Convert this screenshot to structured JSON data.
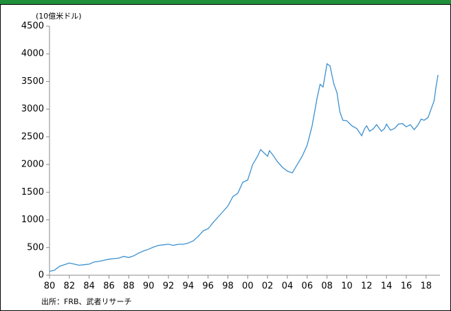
{
  "chart_data": {
    "type": "line",
    "unit_label": "(10億米ドル)",
    "source": "出所：FRB、武者リサーチ",
    "x": [
      1980,
      1980.5,
      1981,
      1981.5,
      1982,
      1982.5,
      1983,
      1983.5,
      1984,
      1984.5,
      1985,
      1985.5,
      1986,
      1986.5,
      1987,
      1987.5,
      1988,
      1988.5,
      1989,
      1989.5,
      1990,
      1990.5,
      1991,
      1991.5,
      1992,
      1992.5,
      1993,
      1993.5,
      1994,
      1994.5,
      1995,
      1995.5,
      1996,
      1996.5,
      1997,
      1997.5,
      1998,
      1998.5,
      1999,
      1999.5,
      2000,
      2000.5,
      2001,
      2001.3,
      2001.7,
      2002,
      2002.2,
      2002.5,
      2003,
      2003.5,
      2004,
      2004.5,
      2005,
      2005.5,
      2006,
      2006.5,
      2007,
      2007.3,
      2007.6,
      2008,
      2008.3,
      2008.7,
      2009,
      2009.3,
      2009.6,
      2010,
      2010.5,
      2011,
      2011.5,
      2011.8,
      2012,
      2012.3,
      2012.7,
      2013,
      2013.5,
      2013.8,
      2014,
      2014.4,
      2014.8,
      2015.2,
      2015.6,
      2016,
      2016.4,
      2016.8,
      2017.2,
      2017.5,
      2017.8,
      2018.2,
      2018.5,
      2018.8,
      2019,
      2019.2
    ],
    "series": [
      {
        "name": null,
        "color": "#3a8fd0",
        "values": [
          70,
          90,
          160,
          190,
          220,
          200,
          180,
          190,
          200,
          240,
          250,
          270,
          290,
          300,
          310,
          340,
          320,
          350,
          400,
          440,
          470,
          510,
          540,
          550,
          560,
          540,
          560,
          560,
          580,
          620,
          700,
          800,
          840,
          950,
          1050,
          1150,
          1250,
          1420,
          1480,
          1680,
          1720,
          2000,
          2150,
          2270,
          2200,
          2150,
          2250,
          2180,
          2050,
          1950,
          1880,
          1850,
          2000,
          2150,
          2350,
          2700,
          3200,
          3450,
          3400,
          3820,
          3780,
          3450,
          3300,
          2950,
          2800,
          2790,
          2700,
          2650,
          2520,
          2650,
          2700,
          2600,
          2650,
          2720,
          2600,
          2650,
          2730,
          2620,
          2650,
          2730,
          2740,
          2680,
          2720,
          2630,
          2720,
          2820,
          2800,
          2850,
          3000,
          3150,
          3400,
          3620
        ]
      }
    ],
    "xlim": [
      1980,
      2019.4
    ],
    "xticks": [
      {
        "value": 1980,
        "label": "80"
      },
      {
        "value": 1982,
        "label": "82"
      },
      {
        "value": 1984,
        "label": "84"
      },
      {
        "value": 1986,
        "label": "86"
      },
      {
        "value": 1988,
        "label": "88"
      },
      {
        "value": 1990,
        "label": "90"
      },
      {
        "value": 1992,
        "label": "92"
      },
      {
        "value": 1994,
        "label": "94"
      },
      {
        "value": 1996,
        "label": "96"
      },
      {
        "value": 1998,
        "label": "98"
      },
      {
        "value": 2000,
        "label": "00"
      },
      {
        "value": 2002,
        "label": "02"
      },
      {
        "value": 2004,
        "label": "04"
      },
      {
        "value": 2006,
        "label": "06"
      },
      {
        "value": 2008,
        "label": "08"
      },
      {
        "value": 2010,
        "label": "10"
      },
      {
        "value": 2012,
        "label": "12"
      },
      {
        "value": 2014,
        "label": "14"
      },
      {
        "value": 2016,
        "label": "16"
      },
      {
        "value": 2018,
        "label": "18"
      }
    ],
    "ylim": [
      0,
      4500
    ],
    "yticks": [
      0,
      500,
      1000,
      1500,
      2000,
      2500,
      3000,
      3500,
      4000,
      4500
    ],
    "grid": false
  }
}
